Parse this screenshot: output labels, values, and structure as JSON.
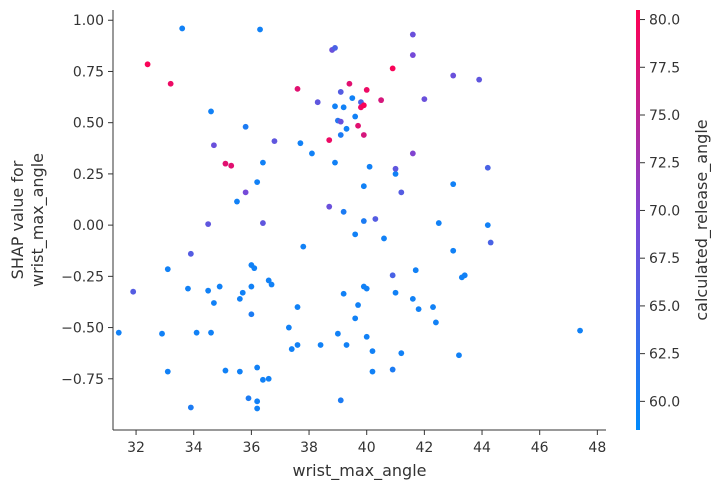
{
  "chart_data": {
    "type": "scatter",
    "title": "",
    "xlabel": "wrist_max_angle",
    "ylabel_lines": [
      "SHAP value for",
      "wrist_max_angle"
    ],
    "xlim": [
      31.2,
      48.3
    ],
    "ylim": [
      -1.0,
      1.05
    ],
    "xticks": [
      32,
      34,
      36,
      38,
      40,
      42,
      44,
      46,
      48
    ],
    "yticks": [
      -0.75,
      -0.5,
      -0.25,
      0.0,
      0.25,
      0.5,
      0.75,
      1.0
    ],
    "xtick_labels": [
      "32",
      "34",
      "36",
      "38",
      "40",
      "42",
      "44",
      "46",
      "48"
    ],
    "ytick_labels": [
      "−0.75",
      "−0.50",
      "−0.25",
      "0.00",
      "0.25",
      "0.50",
      "0.75",
      "1.00"
    ],
    "grid": false,
    "colorbar": {
      "label": "calculated_release_angle",
      "range": [
        58.5,
        80.5
      ],
      "ticks": [
        60.0,
        62.5,
        65.0,
        67.5,
        70.0,
        72.5,
        75.0,
        77.5,
        80.0
      ],
      "tick_labels": [
        "60.0",
        "62.5",
        "65.0",
        "67.5",
        "70.0",
        "72.5",
        "75.0",
        "77.5",
        "80.0"
      ],
      "color_low": "#008afb",
      "color_mid": "#7b47d6",
      "color_high": "#ff0052"
    },
    "points": [
      {
        "x": 33.6,
        "y": 0.96,
        "c": 60
      },
      {
        "x": 36.3,
        "y": 0.955,
        "c": 60
      },
      {
        "x": 32.4,
        "y": 0.785,
        "c": 80
      },
      {
        "x": 33.2,
        "y": 0.69,
        "c": 79
      },
      {
        "x": 34.6,
        "y": 0.555,
        "c": 60
      },
      {
        "x": 34.7,
        "y": 0.39,
        "c": 68
      },
      {
        "x": 35.1,
        "y": 0.3,
        "c": 78
      },
      {
        "x": 35.3,
        "y": 0.29,
        "c": 78
      },
      {
        "x": 35.8,
        "y": 0.48,
        "c": 61
      },
      {
        "x": 35.8,
        "y": 0.16,
        "c": 69
      },
      {
        "x": 35.5,
        "y": 0.115,
        "c": 60
      },
      {
        "x": 36.2,
        "y": 0.21,
        "c": 60
      },
      {
        "x": 36.4,
        "y": 0.305,
        "c": 60
      },
      {
        "x": 36.8,
        "y": 0.41,
        "c": 67
      },
      {
        "x": 36.4,
        "y": 0.01,
        "c": 67
      },
      {
        "x": 34.5,
        "y": 0.005,
        "c": 67
      },
      {
        "x": 33.9,
        "y": -0.14,
        "c": 66
      },
      {
        "x": 31.9,
        "y": -0.325,
        "c": 66
      },
      {
        "x": 33.1,
        "y": -0.215,
        "c": 60
      },
      {
        "x": 33.8,
        "y": -0.31,
        "c": 60
      },
      {
        "x": 34.5,
        "y": -0.32,
        "c": 60
      },
      {
        "x": 34.7,
        "y": -0.38,
        "c": 60
      },
      {
        "x": 34.9,
        "y": -0.3,
        "c": 60
      },
      {
        "x": 35.6,
        "y": -0.36,
        "c": 60
      },
      {
        "x": 35.7,
        "y": -0.33,
        "c": 60
      },
      {
        "x": 36.0,
        "y": -0.195,
        "c": 60
      },
      {
        "x": 36.1,
        "y": -0.21,
        "c": 60
      },
      {
        "x": 36.0,
        "y": -0.3,
        "c": 60
      },
      {
        "x": 36.0,
        "y": -0.435,
        "c": 61
      },
      {
        "x": 36.6,
        "y": -0.27,
        "c": 60
      },
      {
        "x": 36.7,
        "y": -0.29,
        "c": 60
      },
      {
        "x": 31.4,
        "y": -0.525,
        "c": 60
      },
      {
        "x": 32.9,
        "y": -0.53,
        "c": 60
      },
      {
        "x": 34.1,
        "y": -0.525,
        "c": 60
      },
      {
        "x": 34.6,
        "y": -0.525,
        "c": 60
      },
      {
        "x": 33.1,
        "y": -0.715,
        "c": 60
      },
      {
        "x": 33.9,
        "y": -0.89,
        "c": 61
      },
      {
        "x": 35.1,
        "y": -0.71,
        "c": 60
      },
      {
        "x": 35.6,
        "y": -0.715,
        "c": 60
      },
      {
        "x": 35.9,
        "y": -0.845,
        "c": 61
      },
      {
        "x": 36.2,
        "y": -0.695,
        "c": 60
      },
      {
        "x": 36.2,
        "y": -0.86,
        "c": 60
      },
      {
        "x": 36.2,
        "y": -0.895,
        "c": 60
      },
      {
        "x": 36.4,
        "y": -0.755,
        "c": 60
      },
      {
        "x": 36.6,
        "y": -0.75,
        "c": 60
      },
      {
        "x": 37.3,
        "y": -0.5,
        "c": 60
      },
      {
        "x": 37.4,
        "y": -0.605,
        "c": 60
      },
      {
        "x": 37.6,
        "y": -0.585,
        "c": 60
      },
      {
        "x": 37.6,
        "y": -0.4,
        "c": 60
      },
      {
        "x": 37.6,
        "y": 0.665,
        "c": 78
      },
      {
        "x": 37.7,
        "y": 0.4,
        "c": 60
      },
      {
        "x": 38.1,
        "y": 0.35,
        "c": 60
      },
      {
        "x": 37.8,
        "y": -0.105,
        "c": 60
      },
      {
        "x": 38.3,
        "y": 0.6,
        "c": 67
      },
      {
        "x": 38.4,
        "y": -0.585,
        "c": 60
      },
      {
        "x": 38.7,
        "y": 0.09,
        "c": 68
      },
      {
        "x": 38.7,
        "y": 0.415,
        "c": 79
      },
      {
        "x": 38.8,
        "y": 0.855,
        "c": 68
      },
      {
        "x": 38.9,
        "y": 0.865,
        "c": 65
      },
      {
        "x": 38.9,
        "y": 0.58,
        "c": 60
      },
      {
        "x": 38.9,
        "y": 0.305,
        "c": 60
      },
      {
        "x": 39.0,
        "y": 0.51,
        "c": 62
      },
      {
        "x": 39.1,
        "y": 0.505,
        "c": 68
      },
      {
        "x": 39.1,
        "y": 0.65,
        "c": 66
      },
      {
        "x": 39.1,
        "y": 0.44,
        "c": 61
      },
      {
        "x": 39.2,
        "y": 0.575,
        "c": 60
      },
      {
        "x": 39.2,
        "y": 0.065,
        "c": 61
      },
      {
        "x": 39.0,
        "y": -0.53,
        "c": 60
      },
      {
        "x": 39.2,
        "y": -0.335,
        "c": 60
      },
      {
        "x": 39.1,
        "y": -0.855,
        "c": 61
      },
      {
        "x": 39.3,
        "y": 0.47,
        "c": 60
      },
      {
        "x": 39.3,
        "y": -0.585,
        "c": 60
      },
      {
        "x": 39.4,
        "y": 0.69,
        "c": 78
      },
      {
        "x": 39.5,
        "y": 0.62,
        "c": 60
      },
      {
        "x": 39.6,
        "y": 0.53,
        "c": 60
      },
      {
        "x": 39.6,
        "y": -0.045,
        "c": 60
      },
      {
        "x": 39.6,
        "y": -0.455,
        "c": 60
      },
      {
        "x": 39.7,
        "y": 0.485,
        "c": 78
      },
      {
        "x": 39.7,
        "y": -0.39,
        "c": 60
      },
      {
        "x": 39.8,
        "y": 0.6,
        "c": 65
      },
      {
        "x": 39.8,
        "y": 0.575,
        "c": 79
      },
      {
        "x": 39.9,
        "y": 0.585,
        "c": 80
      },
      {
        "x": 39.9,
        "y": 0.44,
        "c": 77
      },
      {
        "x": 39.9,
        "y": 0.19,
        "c": 60
      },
      {
        "x": 39.9,
        "y": 0.02,
        "c": 61
      },
      {
        "x": 39.9,
        "y": -0.3,
        "c": 60
      },
      {
        "x": 40.0,
        "y": -0.31,
        "c": 60
      },
      {
        "x": 40.0,
        "y": -0.545,
        "c": 60
      },
      {
        "x": 40.0,
        "y": 0.66,
        "c": 79
      },
      {
        "x": 40.1,
        "y": 0.285,
        "c": 60
      },
      {
        "x": 40.3,
        "y": 0.03,
        "c": 66
      },
      {
        "x": 40.2,
        "y": -0.615,
        "c": 60
      },
      {
        "x": 40.2,
        "y": -0.715,
        "c": 60
      },
      {
        "x": 40.5,
        "y": 0.61,
        "c": 77
      },
      {
        "x": 40.6,
        "y": -0.065,
        "c": 60
      },
      {
        "x": 40.9,
        "y": 0.765,
        "c": 80
      },
      {
        "x": 41.0,
        "y": 0.25,
        "c": 60
      },
      {
        "x": 41.0,
        "y": 0.275,
        "c": 67
      },
      {
        "x": 40.9,
        "y": -0.245,
        "c": 65
      },
      {
        "x": 41.0,
        "y": -0.33,
        "c": 60
      },
      {
        "x": 40.9,
        "y": -0.705,
        "c": 61
      },
      {
        "x": 41.2,
        "y": 0.16,
        "c": 66
      },
      {
        "x": 41.2,
        "y": -0.625,
        "c": 60
      },
      {
        "x": 41.6,
        "y": 0.93,
        "c": 68
      },
      {
        "x": 41.6,
        "y": 0.83,
        "c": 69
      },
      {
        "x": 41.6,
        "y": 0.35,
        "c": 70
      },
      {
        "x": 41.6,
        "y": -0.36,
        "c": 60
      },
      {
        "x": 41.7,
        "y": -0.22,
        "c": 60
      },
      {
        "x": 41.8,
        "y": -0.41,
        "c": 60
      },
      {
        "x": 42.0,
        "y": 0.615,
        "c": 68
      },
      {
        "x": 42.3,
        "y": -0.4,
        "c": 60
      },
      {
        "x": 42.4,
        "y": -0.475,
        "c": 60
      },
      {
        "x": 42.5,
        "y": 0.01,
        "c": 60
      },
      {
        "x": 43.0,
        "y": 0.73,
        "c": 68
      },
      {
        "x": 43.0,
        "y": 0.2,
        "c": 60
      },
      {
        "x": 43.0,
        "y": -0.125,
        "c": 60
      },
      {
        "x": 43.2,
        "y": -0.635,
        "c": 60
      },
      {
        "x": 43.3,
        "y": -0.255,
        "c": 60
      },
      {
        "x": 43.4,
        "y": -0.245,
        "c": 60
      },
      {
        "x": 43.9,
        "y": 0.71,
        "c": 67
      },
      {
        "x": 44.2,
        "y": 0.0,
        "c": 60
      },
      {
        "x": 44.2,
        "y": 0.28,
        "c": 65
      },
      {
        "x": 44.3,
        "y": -0.085,
        "c": 65
      },
      {
        "x": 47.4,
        "y": -0.515,
        "c": 60
      }
    ]
  }
}
